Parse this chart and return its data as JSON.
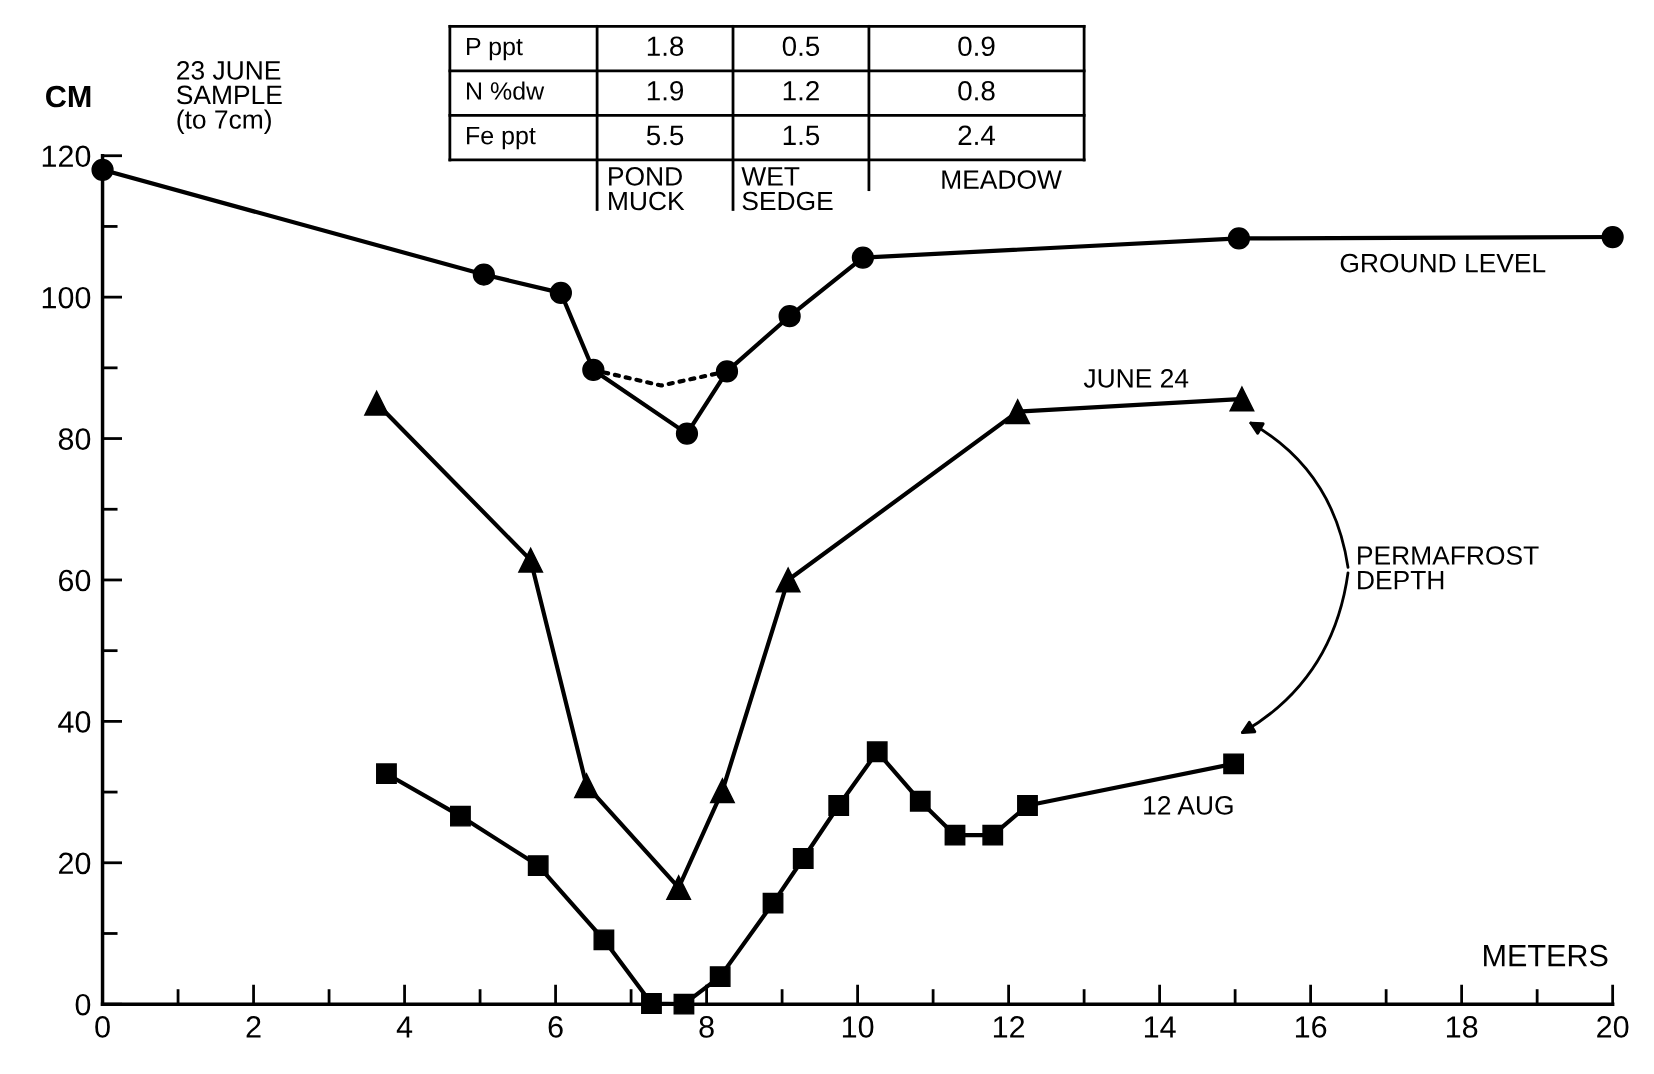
{
  "chart_data": {
    "type": "line",
    "xlabel": "METERS",
    "ylabel": "CM",
    "xlim": [
      0,
      20
    ],
    "ylim": [
      0,
      120
    ],
    "xticks": [
      0,
      2,
      4,
      6,
      8,
      10,
      12,
      14,
      16,
      18,
      20
    ],
    "yticks": [
      0,
      20,
      40,
      60,
      80,
      100,
      120
    ],
    "grid": false,
    "legend": false,
    "line_style": "solid",
    "series": [
      {
        "name": "GROUND LEVEL",
        "color": "#000000",
        "marker": "circle",
        "x": [
          0,
          5.05,
          6.07,
          6.5,
          7.74,
          8.27,
          9.1,
          10.07,
          15.05,
          20
        ],
        "values": [
          118,
          103.2,
          100.6,
          89.7,
          80.7,
          89.5,
          97.3,
          105.6,
          108.3,
          108.5
        ]
      },
      {
        "color": "#000000",
        "marker": "none",
        "line_style": "dotted",
        "x": [
          6.5,
          7.4,
          8.27
        ],
        "values": [
          89.7,
          87.5,
          89.5
        ]
      },
      {
        "name": "JUNE 24",
        "color": "#000000",
        "marker": "triangle",
        "x": [
          3.63,
          5.67,
          6.41,
          7.63,
          8.21,
          9.08,
          12.12,
          15.09
        ],
        "values": [
          85,
          62.8,
          30.9,
          16.5,
          30.2,
          60,
          83.8,
          85.6
        ]
      },
      {
        "name": "12 AUG",
        "color": "#000000",
        "marker": "square",
        "x": [
          3.76,
          4.74,
          5.77,
          6.64,
          7.27,
          7.7,
          8.18,
          8.88,
          9.28,
          9.75,
          10.26,
          10.83,
          11.29,
          11.79,
          12.25,
          14.98
        ],
        "values": [
          32.6,
          26.6,
          19.6,
          9.1,
          0.1,
          0,
          3.9,
          14.3,
          20.6,
          28.1,
          35.7,
          28.7,
          23.9,
          23.9,
          28.1,
          34
        ]
      }
    ],
    "annotations": [
      "P ppt",
      "1.8",
      "0.5",
      "0.9",
      "N %dw",
      "1.9",
      "1.2",
      "0.8",
      "Fe ppt",
      "5.5",
      "1.5",
      "2.4",
      "23 JUNE\nSAMPLE\n(to 7cm)",
      "POND\nMUCK",
      "WET\nSEDGE",
      "MEADOW",
      "PERMAFROST\nDEPTH"
    ]
  }
}
